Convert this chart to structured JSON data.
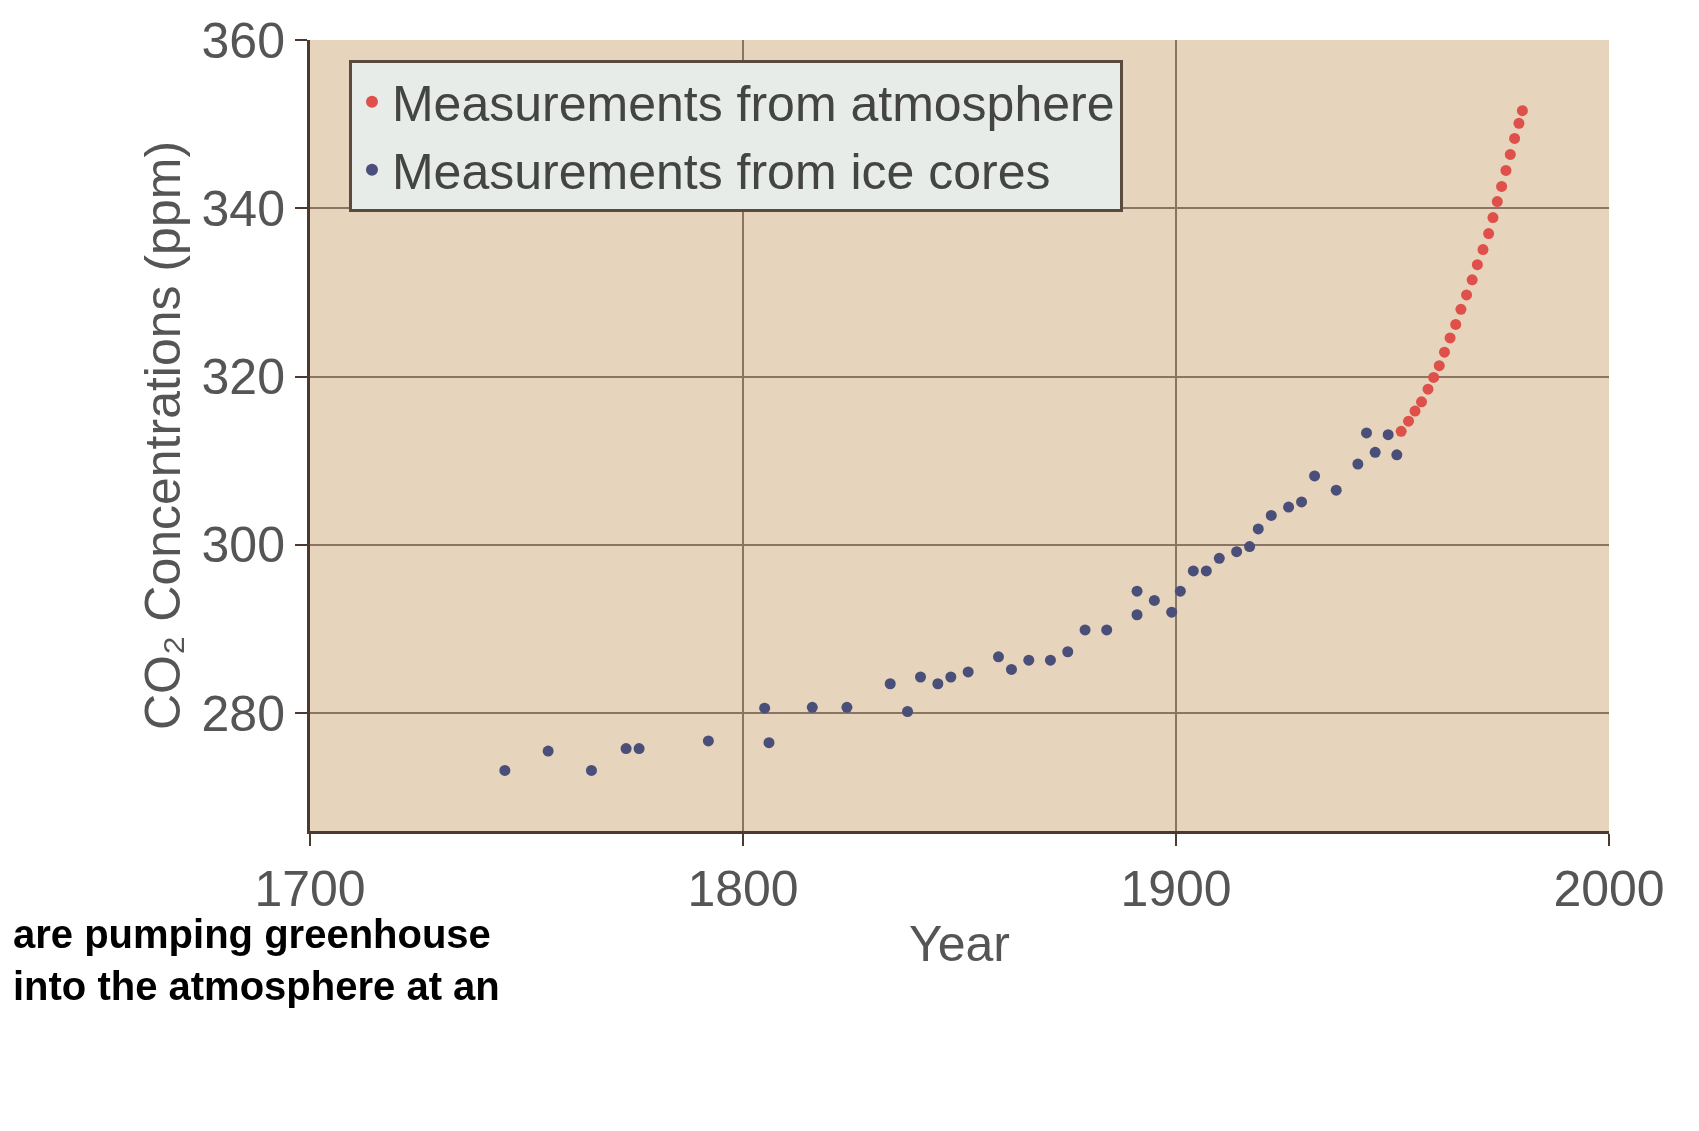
{
  "chart_data": {
    "type": "scatter",
    "xlabel": "Year",
    "ylabel": "CO₂ Concentrations (ppm)",
    "xlim": [
      1700,
      2000
    ],
    "xticks": [
      1700,
      1800,
      1900,
      2000
    ],
    "ylim": [
      266,
      360
    ],
    "yticks": [
      280,
      300,
      320,
      340,
      360
    ],
    "grid": true,
    "legend": "top left",
    "marker": "circle",
    "series": [
      {
        "name": "Measurements from atmosphere",
        "color": "#e0504a",
        "x": [
          1952,
          1953.7,
          1955.2,
          1956.7,
          1958.2,
          1959.5,
          1960.8,
          1962,
          1963.3,
          1964.6,
          1965.8,
          1967.1,
          1968.4,
          1969.6,
          1970.9,
          1972.2,
          1973.2,
          1974.2,
          1975.2,
          1976.2,
          1977.2,
          1978.2,
          1979.2,
          1980
        ],
        "values": [
          313.5,
          314.7,
          315.9,
          317,
          318.5,
          319.9,
          321.3,
          322.9,
          324.6,
          326.2,
          328,
          329.7,
          331.5,
          333.3,
          335.1,
          337,
          338.9,
          340.8,
          342.6,
          344.5,
          346.4,
          348.3,
          350.1,
          351.6
        ]
      },
      {
        "name": "Measurements from ice cores",
        "color": "#4a4f7a",
        "x": [
          1745,
          1755,
          1765,
          1773,
          1776,
          1792,
          1805,
          1806,
          1816,
          1824,
          1834,
          1838,
          1841,
          1845,
          1848,
          1852,
          1859,
          1862,
          1866,
          1871,
          1875,
          1879,
          1884,
          1891,
          1891,
          1895,
          1899,
          1901,
          1904,
          1907,
          1910,
          1914,
          1917,
          1919,
          1922,
          1926,
          1929,
          1932,
          1937,
          1942,
          1944,
          1946,
          1949,
          1951
        ],
        "values": [
          273.2,
          275.5,
          273.2,
          275.8,
          275.8,
          276.7,
          280.6,
          276.5,
          280.7,
          280.7,
          283.5,
          280.2,
          284.3,
          283.5,
          284.3,
          284.9,
          286.7,
          285.2,
          286.3,
          286.3,
          287.3,
          289.9,
          289.9,
          294.5,
          291.7,
          293.4,
          292,
          294.5,
          296.9,
          296.9,
          298.4,
          299.2,
          299.8,
          301.9,
          303.5,
          304.5,
          305.1,
          308.2,
          306.5,
          309.6,
          313.3,
          311,
          313.1,
          310.7
        ]
      }
    ],
    "annotations": [
      "are pumping greenhouse\ninto the atmosphere at an"
    ]
  }
}
